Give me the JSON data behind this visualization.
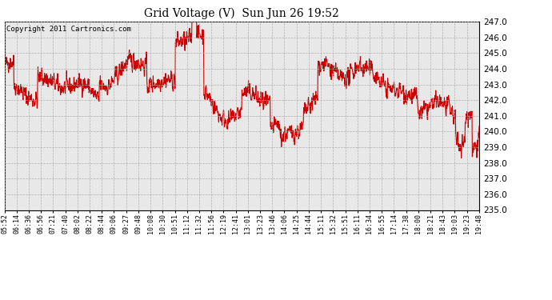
{
  "title": "Grid Voltage (V)  Sun Jun 26 19:52",
  "copyright": "Copyright 2011 Cartronics.com",
  "line_color": "#cc0000",
  "bg_color": "#ffffff",
  "plot_bg_color": "#e8e8e8",
  "grid_color": "#aaaaaa",
  "ylim": [
    235.0,
    247.0
  ],
  "yticks": [
    235.0,
    236.0,
    237.0,
    238.0,
    239.0,
    240.0,
    241.0,
    242.0,
    243.0,
    244.0,
    245.0,
    246.0,
    247.0
  ],
  "xtick_labels": [
    "05:52",
    "06:14",
    "06:36",
    "06:56",
    "07:21",
    "07:40",
    "08:02",
    "08:22",
    "08:44",
    "09:06",
    "09:27",
    "09:48",
    "10:08",
    "10:30",
    "10:51",
    "11:12",
    "11:32",
    "11:56",
    "12:19",
    "12:41",
    "13:01",
    "13:23",
    "13:46",
    "14:06",
    "14:25",
    "14:44",
    "15:11",
    "15:32",
    "15:51",
    "16:11",
    "16:34",
    "16:55",
    "17:14",
    "17:38",
    "18:00",
    "18:21",
    "18:43",
    "19:03",
    "19:23",
    "19:48"
  ],
  "num_points": 1600,
  "seed": 42
}
